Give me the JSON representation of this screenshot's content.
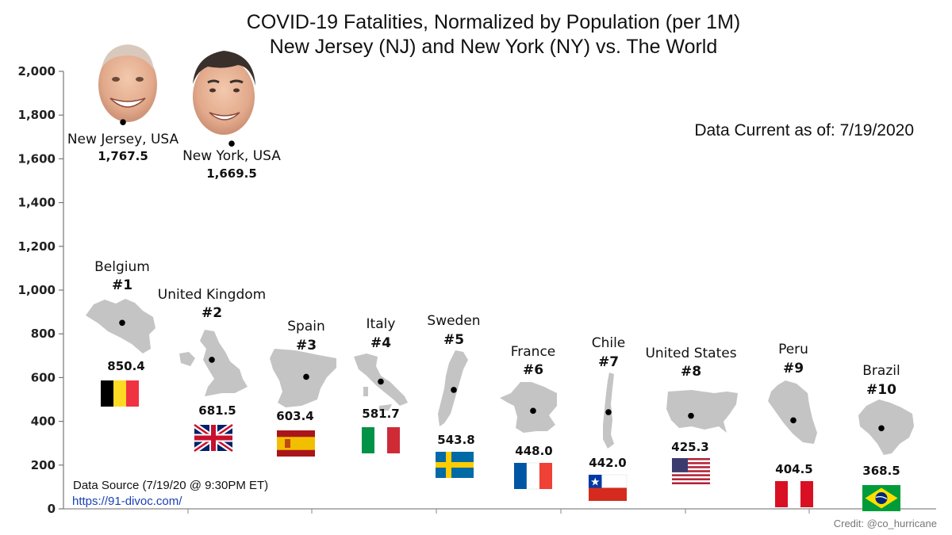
{
  "chart_data": {
    "type": "scatter",
    "title": "COVID-19  Fatalities, Normalized by Population (per 1M)",
    "subtitle": "New Jersey (NJ) and New York (NY) vs. The World",
    "ylim": [
      0,
      2000
    ],
    "yticks": [
      0,
      200,
      400,
      600,
      800,
      1000,
      1200,
      1400,
      1600,
      1800,
      2000
    ],
    "ytick_labels": [
      "0",
      "200",
      "400",
      "600",
      "800",
      "1,000",
      "1,200",
      "1,400",
      "1,600",
      "1,800",
      "2,000"
    ],
    "grid": false,
    "countries": [
      {
        "name": "Belgium",
        "rank": "#1",
        "value": 850.4,
        "value_label": "850.4",
        "flag": "belgium-flag"
      },
      {
        "name": "United Kingdom",
        "rank": "#2",
        "value": 681.5,
        "value_label": "681.5",
        "flag": "uk-flag"
      },
      {
        "name": "Spain",
        "rank": "#3",
        "value": 603.4,
        "value_label": "603.4",
        "flag": "spain-flag"
      },
      {
        "name": "Italy",
        "rank": "#4",
        "value": 581.7,
        "value_label": "581.7",
        "flag": "italy-flag"
      },
      {
        "name": "Sweden",
        "rank": "#5",
        "value": 543.8,
        "value_label": "543.8",
        "flag": "sweden-flag"
      },
      {
        "name": "France",
        "rank": "#6",
        "value": 448.0,
        "value_label": "448.0",
        "flag": "france-flag"
      },
      {
        "name": "Chile",
        "rank": "#7",
        "value": 442.0,
        "value_label": "442.0",
        "flag": "chile-flag"
      },
      {
        "name": "United States",
        "rank": "#8",
        "value": 425.3,
        "value_label": "425.3",
        "flag": "usa-flag"
      },
      {
        "name": "Peru",
        "rank": "#9",
        "value": 404.5,
        "value_label": "404.5",
        "flag": "peru-flag"
      },
      {
        "name": "Brazil",
        "rank": "#10",
        "value": 368.5,
        "value_label": "368.5",
        "flag": "brazil-flag"
      }
    ],
    "states": [
      {
        "name": "New Jersey, USA",
        "value": 1767.5,
        "value_label": "1,767.5"
      },
      {
        "name": "New York, USA",
        "value": 1669.5,
        "value_label": "1,669.5"
      }
    ]
  },
  "annotations": {
    "data_current": "Data Current as of: 7/19/2020",
    "data_source": "Data Source (7/19/20 @ 9:30PM ET)",
    "source_url": "https://91-divoc.com/",
    "credit": "Credit: @co_hurricane"
  },
  "colors": {
    "map_fill": "#c4c4c4",
    "axis": "#777777",
    "link": "#1a3fb5",
    "skin": "#e9b59a"
  }
}
